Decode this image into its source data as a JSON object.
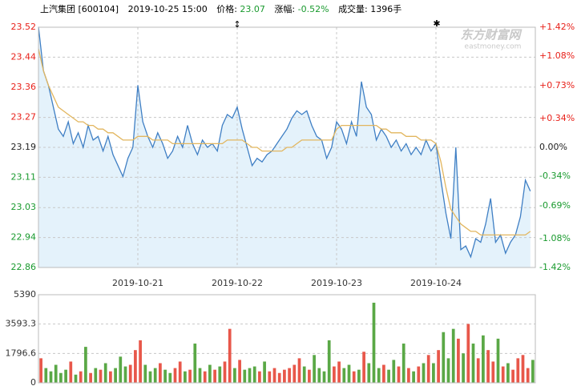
{
  "chart_data": [
    {
      "type": "line",
      "header": {
        "name": "上汽集团",
        "code": "[600104]",
        "datetime": "2019-10-25 15:00",
        "price_label": "价格:",
        "price": "23.07",
        "change_label": "涨幅:",
        "change": "-0.52%",
        "volume_label": "成交量:",
        "volume": "1396手"
      },
      "watermark": {
        "brand": "东方财富网",
        "site": "eastmoney.com"
      },
      "xlim": [
        0,
        100
      ],
      "xticks": [
        {
          "value": 20,
          "label": "2019-10-21"
        },
        {
          "value": 40,
          "label": "2019-10-22"
        },
        {
          "value": 60,
          "label": "2019-10-23"
        },
        {
          "value": 80,
          "label": "2019-10-24"
        }
      ],
      "ylim": [
        22.861,
        23.519
      ],
      "yticks": [
        {
          "value": 23.519,
          "label": "23.52"
        },
        {
          "value": 23.437,
          "label": "23.44"
        },
        {
          "value": 23.355,
          "label": "23.36"
        },
        {
          "value": 23.272,
          "label": "23.27"
        },
        {
          "value": 23.19,
          "label": "23.19"
        },
        {
          "value": 23.108,
          "label": "23.11"
        },
        {
          "value": 23.025,
          "label": "23.03"
        },
        {
          "value": 22.943,
          "label": "22.94"
        },
        {
          "value": 22.861,
          "label": "22.86"
        }
      ],
      "y2lim": [
        -1.42,
        1.42
      ],
      "y2ticks": [
        {
          "value": 1.42,
          "label": "+1.42%"
        },
        {
          "value": 1.08,
          "label": "+1.08%"
        },
        {
          "value": 0.73,
          "label": "+0.73%"
        },
        {
          "value": 0.34,
          "label": "+0.34%"
        },
        {
          "value": 0,
          "label": "0.00%"
        },
        {
          "value": -0.34,
          "label": "-0.34%"
        },
        {
          "value": -0.69,
          "label": "-0.69%"
        },
        {
          "value": -1.08,
          "label": "-1.08%"
        },
        {
          "value": -1.42,
          "label": "-1.42%"
        }
      ],
      "up_color": "#e8211a",
      "flat_color": "#222222",
      "down_color": "#199a2e",
      "grid": true,
      "area_color": "#e4f2fb",
      "series": [
        {
          "color": "#3f7fc4",
          "values": [
            23.52,
            23.4,
            23.36,
            23.3,
            23.24,
            23.22,
            23.26,
            23.2,
            23.23,
            23.19,
            23.25,
            23.21,
            23.22,
            23.18,
            23.22,
            23.17,
            23.14,
            23.11,
            23.16,
            23.19,
            23.36,
            23.26,
            23.22,
            23.19,
            23.23,
            23.2,
            23.16,
            23.18,
            23.22,
            23.19,
            23.25,
            23.2,
            23.17,
            23.21,
            23.19,
            23.2,
            23.18,
            23.25,
            23.28,
            23.27,
            23.3,
            23.24,
            23.19,
            23.14,
            23.16,
            23.15,
            23.17,
            23.18,
            23.2,
            23.22,
            23.24,
            23.27,
            23.29,
            23.28,
            23.29,
            23.25,
            23.22,
            23.21,
            23.16,
            23.19,
            23.26,
            23.24,
            23.2,
            23.26,
            23.22,
            23.37,
            23.3,
            23.28,
            23.21,
            23.24,
            23.22,
            23.19,
            23.21,
            23.18,
            23.2,
            23.17,
            23.19,
            23.17,
            23.21,
            23.18,
            23.2,
            23.1,
            23.01,
            22.94,
            23.19,
            22.91,
            22.92,
            22.89,
            22.94,
            22.93,
            22.98,
            23.05,
            22.93,
            22.95,
            22.9,
            22.93,
            22.95,
            23.0,
            23.1,
            23.07
          ]
        },
        {
          "color": "#e2b65e",
          "values": [
            23.46,
            23.4,
            23.36,
            23.33,
            23.3,
            23.29,
            23.28,
            23.27,
            23.26,
            23.26,
            23.25,
            23.25,
            23.24,
            23.24,
            23.23,
            23.23,
            23.22,
            23.21,
            23.21,
            23.21,
            23.22,
            23.22,
            23.22,
            23.21,
            23.21,
            23.21,
            23.21,
            23.2,
            23.2,
            23.2,
            23.2,
            23.2,
            23.2,
            23.2,
            23.2,
            23.2,
            23.2,
            23.2,
            23.21,
            23.21,
            23.21,
            23.21,
            23.2,
            23.19,
            23.19,
            23.18,
            23.18,
            23.18,
            23.18,
            23.18,
            23.19,
            23.19,
            23.2,
            23.21,
            23.21,
            23.21,
            23.21,
            23.21,
            23.21,
            23.21,
            23.24,
            23.25,
            23.25,
            23.25,
            23.25,
            23.25,
            23.25,
            23.25,
            23.25,
            23.24,
            23.24,
            23.23,
            23.23,
            23.23,
            23.22,
            23.22,
            23.22,
            23.21,
            23.21,
            23.21,
            23.2,
            23.15,
            23.08,
            23.02,
            23.0,
            22.98,
            22.97,
            22.96,
            22.96,
            22.95,
            22.95,
            22.95,
            22.95,
            22.95,
            22.95,
            22.95,
            22.95,
            22.95,
            22.95,
            22.96
          ]
        }
      ]
    },
    {
      "type": "bar",
      "ylim": [
        0,
        5390
      ],
      "yticks": [
        5390,
        3593.3,
        1796.6,
        0
      ],
      "grid": true,
      "up_color": "#e8574a",
      "down_color": "#5aa846",
      "values": [
        1500,
        900,
        700,
        1100,
        600,
        800,
        1300,
        500,
        700,
        2200,
        600,
        900,
        800,
        1200,
        700,
        900,
        1600,
        1000,
        1100,
        2000,
        2600,
        1100,
        700,
        900,
        1200,
        800,
        600,
        900,
        1300,
        700,
        800,
        2400,
        900,
        700,
        1100,
        800,
        1000,
        1300,
        3300,
        900,
        1400,
        800,
        900,
        1000,
        700,
        1300,
        700,
        900,
        600,
        800,
        900,
        1100,
        1500,
        1000,
        800,
        1700,
        900,
        700,
        2600,
        1000,
        1300,
        900,
        1100,
        700,
        800,
        1900,
        1200,
        4900,
        900,
        1100,
        800,
        1400,
        1000,
        2400,
        900,
        700,
        1000,
        1200,
        1700,
        1200,
        2000,
        3100,
        1500,
        3300,
        2700,
        1800,
        3600,
        2400,
        1500,
        2900,
        2000,
        1300,
        2700,
        1000,
        1200,
        800,
        1500,
        1700,
        900,
        1400
      ]
    }
  ]
}
